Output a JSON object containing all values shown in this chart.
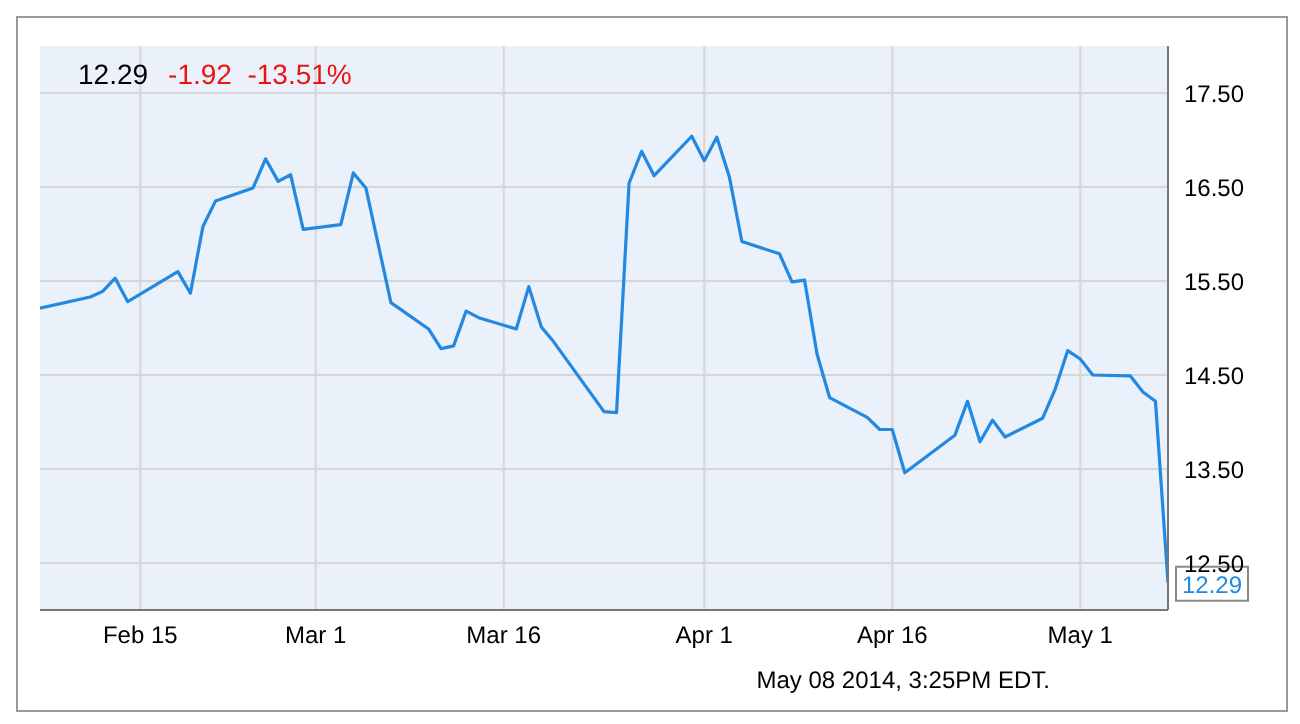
{
  "chart_data": {
    "type": "line",
    "title": "12.29",
    "subtitle": "-1.92  -13.51%",
    "x": [
      "2014-02-07",
      "2014-02-11",
      "2014-02-12",
      "2014-02-13",
      "2014-02-14",
      "2014-02-18",
      "2014-02-19",
      "2014-02-20",
      "2014-02-21",
      "2014-02-24",
      "2014-02-25",
      "2014-02-26",
      "2014-02-27",
      "2014-02-28",
      "2014-03-03",
      "2014-03-04",
      "2014-03-05",
      "2014-03-07",
      "2014-03-10",
      "2014-03-11",
      "2014-03-12",
      "2014-03-13",
      "2014-03-14",
      "2014-03-17",
      "2014-03-18",
      "2014-03-19",
      "2014-03-20",
      "2014-03-24",
      "2014-03-25",
      "2014-03-26",
      "2014-03-27",
      "2014-03-28",
      "2014-03-31",
      "2014-04-01",
      "2014-04-02",
      "2014-04-03",
      "2014-04-04",
      "2014-04-07",
      "2014-04-08",
      "2014-04-09",
      "2014-04-10",
      "2014-04-11",
      "2014-04-14",
      "2014-04-15",
      "2014-04-16",
      "2014-04-17",
      "2014-04-21",
      "2014-04-22",
      "2014-04-23",
      "2014-04-24",
      "2014-04-25",
      "2014-04-28",
      "2014-04-29",
      "2014-04-30",
      "2014-05-01",
      "2014-05-02",
      "2014-05-05",
      "2014-05-06",
      "2014-05-07",
      "2014-05-08"
    ],
    "series": [
      {
        "color": "#2388e0",
        "values": [
          15.21,
          15.33,
          15.39,
          15.53,
          15.28,
          15.6,
          15.37,
          16.08,
          16.35,
          16.49,
          16.8,
          16.56,
          16.63,
          16.05,
          16.1,
          16.65,
          16.49,
          15.27,
          14.99,
          14.78,
          14.81,
          15.18,
          15.11,
          14.99,
          15.44,
          15.01,
          14.85,
          14.11,
          14.1,
          16.54,
          16.88,
          16.62,
          17.04,
          16.78,
          17.03,
          16.61,
          15.92,
          15.79,
          15.49,
          15.51,
          14.72,
          14.26,
          14.05,
          13.92,
          13.92,
          13.46,
          13.86,
          14.22,
          13.79,
          14.02,
          13.84,
          14.04,
          14.35,
          14.76,
          14.67,
          14.5,
          14.49,
          14.32,
          14.22,
          12.29
        ]
      }
    ],
    "xlim": [
      "2014-02-07",
      "2014-05-08"
    ],
    "xticks": [
      {
        "value": "2014-02-15",
        "label": "Feb 15"
      },
      {
        "value": "2014-03-01",
        "label": "Mar 1"
      },
      {
        "value": "2014-03-16",
        "label": "Mar 16"
      },
      {
        "value": "2014-04-01",
        "label": "Apr 1"
      },
      {
        "value": "2014-04-16",
        "label": "Apr 16"
      },
      {
        "value": "2014-05-01",
        "label": "May 1"
      }
    ],
    "ylim": [
      12,
      18
    ],
    "yticks": [
      {
        "value": 12.5,
        "label": "12.50"
      },
      {
        "value": 13.5,
        "label": "13.50"
      },
      {
        "value": 14.5,
        "label": "14.50"
      },
      {
        "value": 15.5,
        "label": "15.50"
      },
      {
        "value": 16.5,
        "label": "16.50"
      },
      {
        "value": 17.5,
        "label": "17.50"
      }
    ],
    "grid": true,
    "marker": "none",
    "line_style": "solid",
    "annotations": [
      {
        "text": "12.29",
        "x": "2014-05-08",
        "y": 12.29
      },
      "May 08 2014, 3:25PM EDT."
    ]
  }
}
